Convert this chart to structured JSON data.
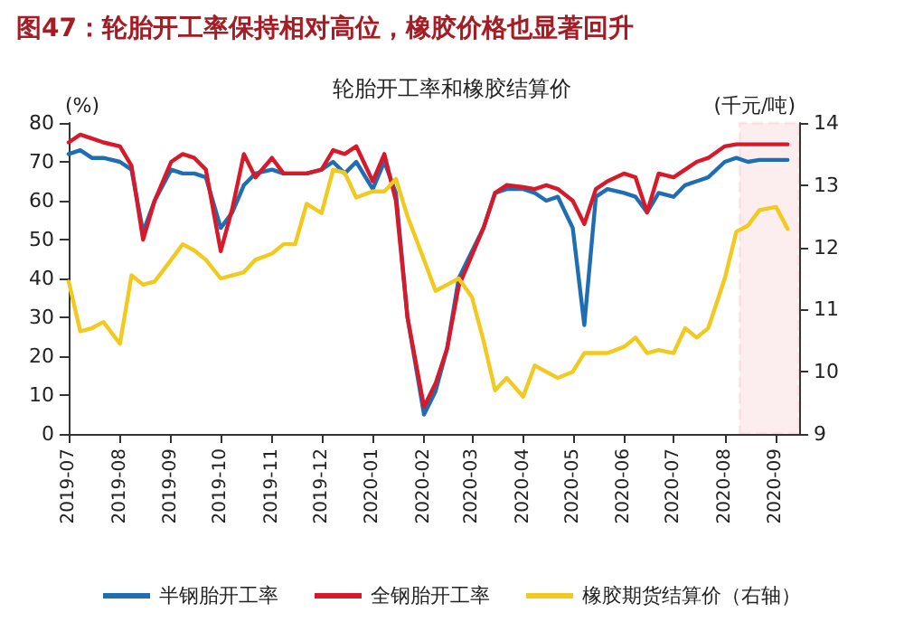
{
  "chart_data": {
    "type": "line",
    "title": "图47：轮胎开工率保持相对高位，橡胶价格也显著回升",
    "subtitle": "轮胎开工率和橡胶结算价",
    "ylabel": "(%)",
    "y2label": "(千元/吨)",
    "x": [
      "2019-07-01",
      "2019-07-08",
      "2019-07-15",
      "2019-07-22",
      "2019-08-01",
      "2019-08-08",
      "2019-08-15",
      "2019-08-22",
      "2019-09-01",
      "2019-09-08",
      "2019-09-15",
      "2019-09-22",
      "2019-10-01",
      "2019-10-08",
      "2019-10-15",
      "2019-10-22",
      "2019-11-01",
      "2019-11-08",
      "2019-11-15",
      "2019-11-22",
      "2019-12-01",
      "2019-12-08",
      "2019-12-15",
      "2019-12-22",
      "2020-01-01",
      "2020-01-08",
      "2020-01-15",
      "2020-01-22",
      "2020-02-01",
      "2020-02-08",
      "2020-02-15",
      "2020-02-22",
      "2020-03-01",
      "2020-03-08",
      "2020-03-15",
      "2020-03-22",
      "2020-04-01",
      "2020-04-08",
      "2020-04-15",
      "2020-04-22",
      "2020-05-01",
      "2020-05-08",
      "2020-05-15",
      "2020-05-22",
      "2020-06-01",
      "2020-06-08",
      "2020-06-15",
      "2020-06-22",
      "2020-07-01",
      "2020-07-08",
      "2020-07-15",
      "2020-07-22",
      "2020-08-01",
      "2020-08-08",
      "2020-08-15",
      "2020-08-22",
      "2020-09-01",
      "2020-09-08"
    ],
    "series": [
      {
        "name": "半钢胎开工率",
        "color": "#1f6eb4",
        "values": [
          72,
          73,
          71,
          71,
          70,
          68,
          52,
          60,
          68,
          67,
          67,
          66,
          53,
          57,
          64,
          67,
          68,
          67,
          67,
          67,
          68,
          70,
          67,
          70,
          63,
          70,
          62,
          30,
          5,
          11,
          22,
          40,
          47,
          53,
          62,
          63,
          63,
          62,
          60,
          61,
          53,
          28,
          61,
          63,
          62,
          61,
          57,
          62,
          61,
          64,
          65,
          66,
          70,
          71,
          70,
          70.5,
          70.5,
          70.5
        ]
      },
      {
        "name": "全钢胎开工率",
        "color": "#d7192a",
        "values": [
          75,
          77,
          76,
          75,
          74,
          69,
          50,
          60,
          70,
          72,
          71,
          68,
          47,
          58,
          72,
          66,
          71,
          67,
          67,
          67,
          68,
          73,
          72,
          74,
          65,
          72,
          60,
          30,
          7,
          13,
          22,
          38,
          46,
          53,
          62,
          64,
          63.5,
          63,
          64,
          63,
          60,
          54,
          63,
          65,
          67,
          66,
          57,
          67,
          66,
          68,
          70,
          71,
          74,
          74.5,
          74.5,
          74.5,
          74.5,
          74.5
        ]
      },
      {
        "name": "橡胶期货结算价（右轴）",
        "color": "#f2c91f",
        "axis": "y2",
        "values": [
          11.45,
          10.65,
          10.7,
          10.8,
          10.45,
          11.55,
          11.4,
          11.45,
          11.8,
          12.05,
          11.95,
          11.8,
          11.5,
          11.55,
          11.6,
          11.8,
          11.9,
          12.05,
          12.05,
          12.7,
          12.55,
          13.25,
          13.2,
          12.8,
          12.9,
          12.9,
          13.1,
          12.5,
          11.8,
          11.3,
          11.4,
          11.5,
          11.2,
          10.5,
          9.7,
          9.9,
          9.6,
          10.1,
          10.0,
          9.9,
          10.0,
          10.3,
          10.3,
          10.3,
          10.4,
          10.55,
          10.3,
          10.35,
          10.3,
          10.7,
          10.55,
          10.7,
          11.5,
          12.25,
          12.35,
          12.6,
          12.65,
          12.3
        ]
      }
    ],
    "xlim": [
      "2019-07-01",
      "2020-09-15"
    ],
    "xticks": [
      "2019-07",
      "2019-08",
      "2019-09",
      "2019-10",
      "2019-11",
      "2019-12",
      "2020-01",
      "2020-02",
      "2020-03",
      "2020-04",
      "2020-05",
      "2020-06",
      "2020-07",
      "2020-08",
      "2020-09"
    ],
    "ylim": [
      0,
      80
    ],
    "yticks": [
      0,
      10,
      20,
      30,
      40,
      50,
      60,
      70,
      80
    ],
    "y2lim": [
      9,
      14
    ],
    "y2ticks": [
      9,
      10,
      11,
      12,
      13,
      14
    ],
    "bands": [
      {
        "axis": "x",
        "from": "2020-08-10",
        "to": "2020-09-15",
        "color": "#d7192a"
      }
    ],
    "legend": "bottom",
    "grid": false,
    "marker": "none",
    "line_style": "solid"
  }
}
